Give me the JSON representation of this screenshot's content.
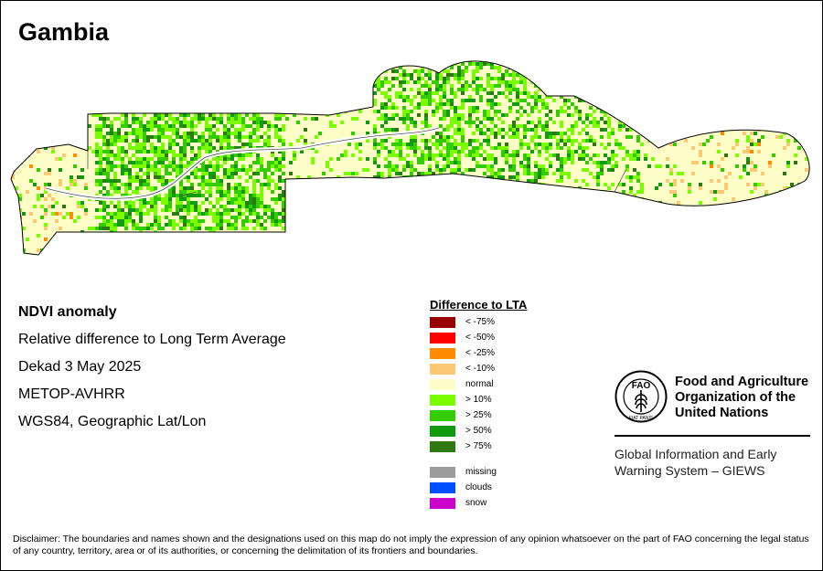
{
  "title": "Gambia",
  "info": {
    "product": "NDVI anomaly",
    "description": "Relative difference to Long Term Average",
    "period": "Dekad 3 May 2025",
    "sensor": "METOP-AVHRR",
    "projection": "WGS84, Geographic Lat/Lon"
  },
  "legend": {
    "title": "Difference to LTA",
    "classes": [
      {
        "label": "< -75%",
        "color": "#990000"
      },
      {
        "label": "< -50%",
        "color": "#ff0000"
      },
      {
        "label": "< -25%",
        "color": "#ff8c00"
      },
      {
        "label": "< -10%",
        "color": "#fdc873"
      },
      {
        "label": "normal",
        "color": "#fdfdc8"
      },
      {
        "label": "> 10%",
        "color": "#7cfc00"
      },
      {
        "label": "> 25%",
        "color": "#33cc00"
      },
      {
        "label": "> 50%",
        "color": "#129b12"
      },
      {
        "label": "> 75%",
        "color": "#2e7a10"
      }
    ],
    "extra": [
      {
        "label": "missing",
        "color": "#9c9c9c"
      },
      {
        "label": "clouds",
        "color": "#0050ff"
      },
      {
        "label": "snow",
        "color": "#cc00cc"
      }
    ]
  },
  "organization": {
    "logo_text": "FAO",
    "logo_motto": "FIAT PANIS",
    "name_lines": [
      "Food and Agriculture",
      "Organization of the",
      "United Nations"
    ],
    "program_lines": [
      "Global Information and Early",
      "Warning System – GIEWS"
    ]
  },
  "disclaimer": "Disclaimer: The boundaries and names shown and the designations used on this map do not imply the expression of any opinion whatsoever on the part of FAO concerning the legal status of any country, territory, area or of its authorities, or concerning the delimitation of its frontiers and boundaries."
}
